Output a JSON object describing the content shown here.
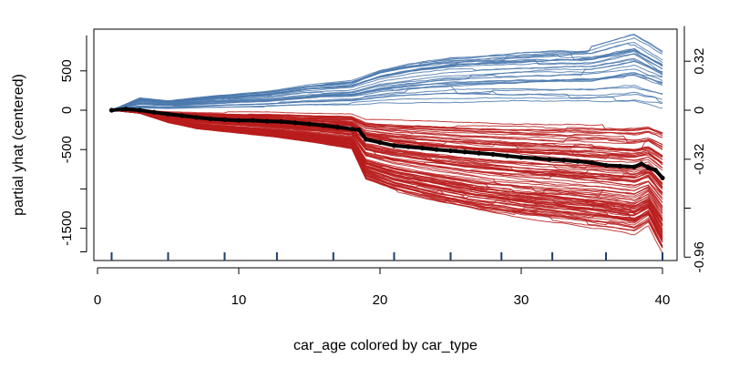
{
  "chart_data": {
    "type": "line",
    "xlabel": "car_age colored by car_type",
    "ylabel": "partial yhat (centered)",
    "xlim": [
      0,
      40
    ],
    "ylim": [
      -1800,
      950
    ],
    "x_ticks": [
      0,
      10,
      20,
      30,
      40
    ],
    "y_ticks_left": [
      500,
      0,
      -500,
      -1500
    ],
    "y_tick_left_minor": [
      -1000
    ],
    "y_ticks_right": [
      "0.32",
      "0",
      "-0.32",
      "-0.96"
    ],
    "right_axis_values": [
      0.32,
      0,
      -0.32,
      -0.64,
      -0.96
    ],
    "rug_x": [
      1,
      5,
      9,
      12.7,
      16.7,
      21,
      25,
      28.6,
      32.2,
      36,
      40
    ],
    "colors": {
      "group_a": "#4a78ad",
      "group_b": "#b81c1c",
      "average": "#000000"
    },
    "groups": [
      {
        "color": "#4a78ad",
        "count": 30,
        "path": [
          [
            1,
            0
          ],
          [
            3,
            80
          ],
          [
            5,
            60
          ],
          [
            8,
            90
          ],
          [
            12,
            120
          ],
          [
            15,
            160
          ],
          [
            18,
            180
          ],
          [
            20,
            250
          ],
          [
            22,
            290
          ],
          [
            25,
            330
          ],
          [
            28,
            350
          ],
          [
            32,
            370
          ],
          [
            35,
            380
          ],
          [
            38,
            450
          ],
          [
            40,
            330
          ]
        ]
      },
      {
        "color": "#b81c1c",
        "count": 100,
        "path": [
          [
            1,
            0
          ],
          [
            3,
            -20
          ],
          [
            5,
            -80
          ],
          [
            7,
            -120
          ],
          [
            10,
            -150
          ],
          [
            13,
            -180
          ],
          [
            16,
            -220
          ],
          [
            18,
            -250
          ],
          [
            19,
            -450
          ],
          [
            21,
            -520
          ],
          [
            24,
            -590
          ],
          [
            27,
            -650
          ],
          [
            30,
            -690
          ],
          [
            33,
            -720
          ],
          [
            36,
            -750
          ],
          [
            38,
            -780
          ],
          [
            39,
            -720
          ],
          [
            40,
            -900
          ]
        ]
      }
    ],
    "series": [
      {
        "color": "#000000",
        "x": [
          1,
          2,
          3,
          4,
          5,
          6,
          7,
          8,
          9,
          10,
          11,
          12,
          13,
          14,
          15,
          16,
          17,
          18,
          18.5,
          19,
          20,
          21,
          22,
          23,
          24,
          25,
          26,
          27,
          28,
          29,
          30,
          31,
          32,
          33,
          34,
          35,
          36,
          37,
          38,
          38.5,
          39,
          39.5,
          40
        ],
        "values": [
          0,
          15,
          0,
          -25,
          -50,
          -70,
          -90,
          -110,
          -120,
          -130,
          -130,
          -140,
          -145,
          -160,
          -175,
          -195,
          -215,
          -240,
          -250,
          -370,
          -410,
          -450,
          -465,
          -480,
          -500,
          -515,
          -530,
          -545,
          -560,
          -580,
          -600,
          -610,
          -625,
          -635,
          -650,
          -665,
          -700,
          -710,
          -720,
          -680,
          -730,
          -760,
          -860
        ]
      }
    ]
  }
}
